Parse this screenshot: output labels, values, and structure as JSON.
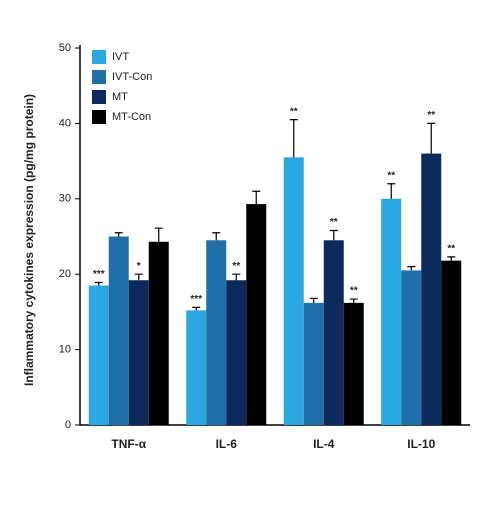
{
  "chart_data": {
    "type": "bar",
    "y_label": "Inflammatory cytokines expression (pg/mg protein)",
    "categories": [
      "TNF-α",
      "IL-6",
      "IL-4",
      "IL-10"
    ],
    "ylim": [
      0,
      50
    ],
    "yticks": [
      0,
      10,
      20,
      30,
      40,
      50
    ],
    "legend": "top-left",
    "series": [
      {
        "name": "IVT",
        "color": "#2aa7e1",
        "values": [
          18.5,
          15.2,
          35.5,
          30
        ],
        "errors": [
          0.4,
          0.4,
          5,
          2
        ],
        "annotations": [
          "***",
          "***",
          "**",
          "**"
        ]
      },
      {
        "name": "IVT-Con",
        "color": "#1f6fa9",
        "values": [
          25,
          24.5,
          16.2,
          20.5
        ],
        "errors": [
          0.5,
          1,
          0.6,
          0.5
        ],
        "annotations": [
          null,
          null,
          null,
          null
        ]
      },
      {
        "name": "MT",
        "color": "#0c2a5c",
        "values": [
          19.2,
          19.2,
          24.5,
          36
        ],
        "errors": [
          0.8,
          0.8,
          1.3,
          4
        ],
        "annotations": [
          "*",
          "**",
          "**",
          "**"
        ]
      },
      {
        "name": "MT-Con",
        "color": "#000000",
        "values": [
          24.3,
          29.3,
          16.2,
          21.8
        ],
        "errors": [
          1.8,
          1.7,
          0.5,
          0.5
        ],
        "annotations": [
          null,
          null,
          "**",
          "**"
        ]
      }
    ]
  }
}
